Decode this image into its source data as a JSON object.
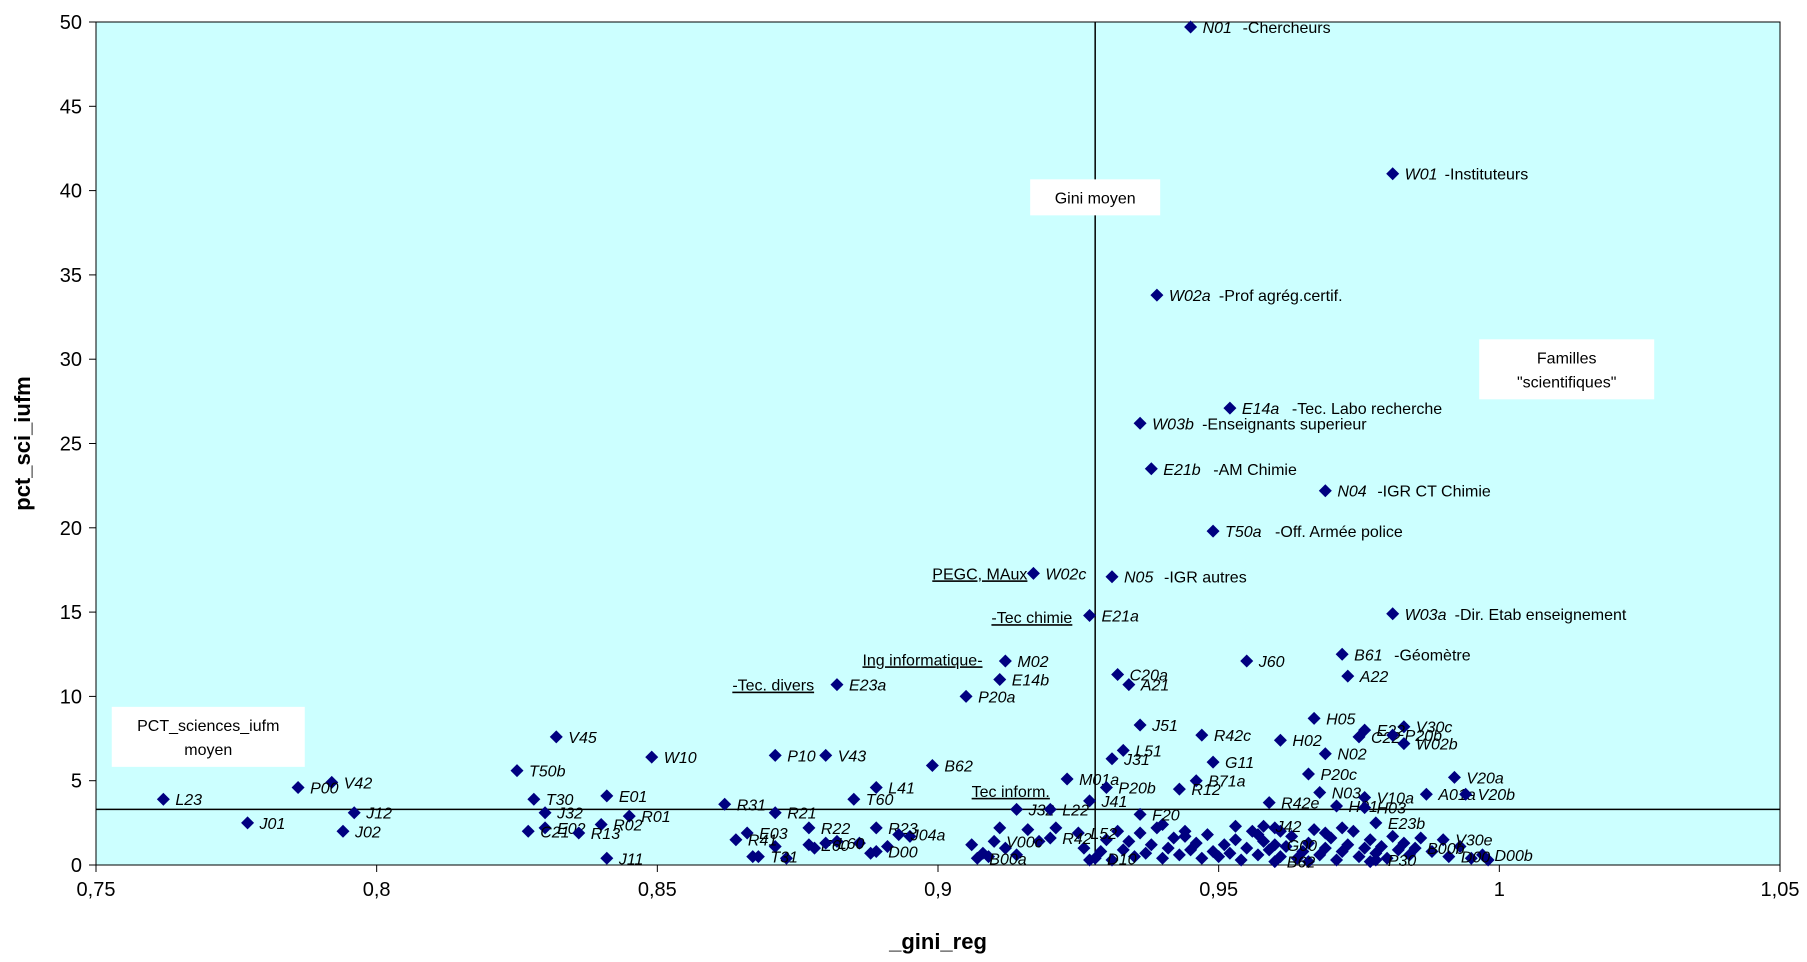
{
  "chart_data": {
    "type": "scatter",
    "xlabel": "_gini_reg",
    "ylabel": "pct_sci_iufm",
    "xlim": [
      0.75,
      1.05
    ],
    "ylim": [
      0,
      50
    ],
    "x_ticks": [
      "0,75",
      "0,8",
      "0,85",
      "0,9",
      "0,95",
      "1",
      "1,05"
    ],
    "y_ticks": [
      "0",
      "5",
      "10",
      "15",
      "20",
      "25",
      "30",
      "35",
      "40",
      "45",
      "50"
    ],
    "background_color": "#ccffff",
    "marker_color": "#000080",
    "grid": false,
    "mean_lines": {
      "gini_moyen": 0.928,
      "pct_moyen": 3.3
    },
    "annotation_boxes": [
      {
        "text": [
          "Gini moyen"
        ],
        "x": 0.928,
        "y": 39.6
      },
      {
        "text": [
          "Familles",
          "\"scientifiques\""
        ],
        "x": 1.012,
        "y": 29.4
      },
      {
        "text": [
          "PCT_sciences_iufm",
          "moyen"
        ],
        "x": 0.77,
        "y": 7.6
      }
    ],
    "group_labels": [
      {
        "text": "PEGC, MAux",
        "x": 0.917,
        "y": 17.3
      },
      {
        "text": "-Tec chimie",
        "x": 0.925,
        "y": 14.7
      },
      {
        "text": "Ing informatique-",
        "x": 0.909,
        "y": 12.2
      },
      {
        "text": "-Tec. divers",
        "x": 0.879,
        "y": 10.7
      },
      {
        "text": "Tec inform.",
        "x": 0.921,
        "y": 4.4
      }
    ],
    "points": [
      {
        "label": "N01",
        "x": 0.945,
        "y": 49.7,
        "desc": "-Chercheurs"
      },
      {
        "label": "W01",
        "x": 0.981,
        "y": 41.0,
        "desc": "-Instituteurs"
      },
      {
        "label": "W02a",
        "x": 0.939,
        "y": 33.8,
        "desc": "-Prof agrég.certif."
      },
      {
        "label": "E14a",
        "x": 0.952,
        "y": 27.1,
        "desc": "-Tec. Labo recherche"
      },
      {
        "label": "W03b",
        "x": 0.936,
        "y": 26.2,
        "desc": "-Enseignants superieur"
      },
      {
        "label": "E21b",
        "x": 0.938,
        "y": 23.5,
        "desc": "-AM Chimie"
      },
      {
        "label": "N04",
        "x": 0.969,
        "y": 22.2,
        "desc": "-IGR CT Chimie"
      },
      {
        "label": "T50a",
        "x": 0.949,
        "y": 19.8,
        "desc": "-Off. Armée police"
      },
      {
        "label": "W02c",
        "x": 0.917,
        "y": 17.3
      },
      {
        "label": "N05",
        "x": 0.931,
        "y": 17.1,
        "desc": "-IGR autres"
      },
      {
        "label": "E21a",
        "x": 0.927,
        "y": 14.8
      },
      {
        "label": "W03a",
        "x": 0.981,
        "y": 14.9,
        "desc": "-Dir. Etab enseignement"
      },
      {
        "label": "B61",
        "x": 0.972,
        "y": 12.5,
        "desc": "-Géomètre"
      },
      {
        "label": "J60",
        "x": 0.955,
        "y": 12.1
      },
      {
        "label": "M02",
        "x": 0.912,
        "y": 12.1
      },
      {
        "label": "C20a",
        "x": 0.932,
        "y": 11.3
      },
      {
        "label": "A22",
        "x": 0.973,
        "y": 11.2
      },
      {
        "label": "E14b",
        "x": 0.911,
        "y": 11.0
      },
      {
        "label": "E23a",
        "x": 0.882,
        "y": 10.7
      },
      {
        "label": "A21",
        "x": 0.934,
        "y": 10.7
      },
      {
        "label": "P20a",
        "x": 0.905,
        "y": 10.0
      },
      {
        "label": "H05",
        "x": 0.967,
        "y": 8.7
      },
      {
        "label": "J51",
        "x": 0.936,
        "y": 8.3
      },
      {
        "label": "V30c",
        "x": 0.983,
        "y": 8.2
      },
      {
        "label": "E22",
        "x": 0.976,
        "y": 8.0
      },
      {
        "label": "R42c",
        "x": 0.947,
        "y": 7.7
      },
      {
        "label": "C22",
        "x": 0.975,
        "y": 7.6
      },
      {
        "label": "P20b",
        "x": 0.981,
        "y": 7.7
      },
      {
        "label": "H02",
        "x": 0.961,
        "y": 7.4
      },
      {
        "label": "V45",
        "x": 0.832,
        "y": 7.6
      },
      {
        "label": "W02b",
        "x": 0.983,
        "y": 7.2
      },
      {
        "label": "N02",
        "x": 0.969,
        "y": 6.6
      },
      {
        "label": "L51",
        "x": 0.933,
        "y": 6.8
      },
      {
        "label": "W10",
        "x": 0.849,
        "y": 6.4
      },
      {
        "label": "P10",
        "x": 0.871,
        "y": 6.5
      },
      {
        "label": "V43",
        "x": 0.88,
        "y": 6.5
      },
      {
        "label": "J31",
        "x": 0.931,
        "y": 6.3
      },
      {
        "label": "G11",
        "x": 0.949,
        "y": 6.1
      },
      {
        "label": "B62",
        "x": 0.899,
        "y": 5.9
      },
      {
        "label": "T50b",
        "x": 0.825,
        "y": 5.6
      },
      {
        "label": "P20c",
        "x": 0.966,
        "y": 5.4
      },
      {
        "label": "V20a",
        "x": 0.992,
        "y": 5.2
      },
      {
        "label": "M01a",
        "x": 0.923,
        "y": 5.1
      },
      {
        "label": "B71a",
        "x": 0.946,
        "y": 5.0
      },
      {
        "label": "V42",
        "x": 0.792,
        "y": 4.9
      },
      {
        "label": "P00",
        "x": 0.786,
        "y": 4.6
      },
      {
        "label": "L41",
        "x": 0.889,
        "y": 4.6
      },
      {
        "label": "P20b",
        "x": 0.93,
        "y": 4.6
      },
      {
        "label": "R12",
        "x": 0.943,
        "y": 4.5
      },
      {
        "label": "N03",
        "x": 0.968,
        "y": 4.3
      },
      {
        "label": "A01a",
        "x": 0.987,
        "y": 4.2
      },
      {
        "label": "V20b",
        "x": 0.994,
        "y": 4.2
      },
      {
        "label": "E01",
        "x": 0.841,
        "y": 4.1
      },
      {
        "label": "V10a",
        "x": 0.976,
        "y": 4.0
      },
      {
        "label": "T30",
        "x": 0.828,
        "y": 3.9
      },
      {
        "label": "T60",
        "x": 0.885,
        "y": 3.9
      },
      {
        "label": "L23",
        "x": 0.762,
        "y": 3.9
      },
      {
        "label": "J41",
        "x": 0.927,
        "y": 3.8
      },
      {
        "label": "R42e",
        "x": 0.959,
        "y": 3.7
      },
      {
        "label": "R31",
        "x": 0.862,
        "y": 3.6
      },
      {
        "label": "H01",
        "x": 0.971,
        "y": 3.5
      },
      {
        "label": "H03",
        "x": 0.976,
        "y": 3.4
      },
      {
        "label": "J32",
        "x": 0.914,
        "y": 3.3
      },
      {
        "label": "L22",
        "x": 0.92,
        "y": 3.3
      },
      {
        "label": "J12",
        "x": 0.796,
        "y": 3.1
      },
      {
        "label": "J32",
        "x": 0.83,
        "y": 3.1
      },
      {
        "label": "R21",
        "x": 0.871,
        "y": 3.1
      },
      {
        "label": "F20",
        "x": 0.936,
        "y": 3.0
      },
      {
        "label": "R01",
        "x": 0.845,
        "y": 2.9
      },
      {
        "label": "E23b",
        "x": 0.978,
        "y": 2.5
      },
      {
        "label": "J01",
        "x": 0.777,
        "y": 2.5
      },
      {
        "label": "R02",
        "x": 0.84,
        "y": 2.4
      },
      {
        "label": "R22",
        "x": 0.877,
        "y": 2.2
      },
      {
        "label": "R23",
        "x": 0.889,
        "y": 2.2
      },
      {
        "label": "E02",
        "x": 0.83,
        "y": 2.2
      },
      {
        "label": "J42",
        "x": 0.958,
        "y": 2.3
      },
      {
        "label": "C21",
        "x": 0.827,
        "y": 2.0
      },
      {
        "label": "J02",
        "x": 0.794,
        "y": 2.0
      },
      {
        "label": "R13",
        "x": 0.836,
        "y": 1.9
      },
      {
        "label": "E03",
        "x": 0.866,
        "y": 1.9
      },
      {
        "label": "J04a",
        "x": 0.893,
        "y": 1.8
      },
      {
        "label": "L52",
        "x": 0.925,
        "y": 1.9
      },
      {
        "label": "V30e",
        "x": 0.99,
        "y": 1.5
      },
      {
        "label": "D00b",
        "x": 0.997,
        "y": 0.6
      },
      {
        "label": "D00",
        "x": 0.991,
        "y": 0.5
      },
      {
        "label": "E60",
        "x": 0.877,
        "y": 1.2
      },
      {
        "label": "D00",
        "x": 0.889,
        "y": 0.8
      },
      {
        "label": "T31",
        "x": 0.868,
        "y": 0.5
      },
      {
        "label": "J11",
        "x": 0.841,
        "y": 0.4
      },
      {
        "label": "D10",
        "x": 0.928,
        "y": 0.4
      },
      {
        "label": "B62",
        "x": 0.96,
        "y": 0.2
      },
      {
        "label": "P30",
        "x": 0.978,
        "y": 0.3
      },
      {
        "label": "B00a",
        "x": 0.907,
        "y": 0.4
      },
      {
        "label": "R41",
        "x": 0.864,
        "y": 1.5
      },
      {
        "label": "R42",
        "x": 0.92,
        "y": 1.6
      },
      {
        "label": "V00c",
        "x": 0.91,
        "y": 1.4
      },
      {
        "label": "G00",
        "x": 0.96,
        "y": 1.2
      },
      {
        "label": "L60",
        "x": 0.88,
        "y": 1.3
      },
      {
        "label": "B00b",
        "x": 0.985,
        "y": 1.0
      }
    ],
    "filler_points": [
      [
        0.867,
        0.5
      ],
      [
        0.871,
        1.1
      ],
      [
        0.873,
        0.4
      ],
      [
        0.878,
        1.0
      ],
      [
        0.882,
        1.4
      ],
      [
        0.886,
        1.3
      ],
      [
        0.888,
        0.7
      ],
      [
        0.891,
        1.1
      ],
      [
        0.895,
        1.7
      ],
      [
        0.906,
        1.2
      ],
      [
        0.908,
        0.7
      ],
      [
        0.909,
        0.5
      ],
      [
        0.911,
        2.2
      ],
      [
        0.912,
        1.0
      ],
      [
        0.914,
        0.6
      ],
      [
        0.916,
        2.1
      ],
      [
        0.918,
        1.4
      ],
      [
        0.921,
        2.2
      ],
      [
        0.926,
        1.0
      ],
      [
        0.927,
        0.3
      ],
      [
        0.929,
        0.8
      ],
      [
        0.93,
        1.5
      ],
      [
        0.931,
        0.3
      ],
      [
        0.932,
        2.0
      ],
      [
        0.933,
        0.9
      ],
      [
        0.934,
        1.4
      ],
      [
        0.935,
        0.5
      ],
      [
        0.936,
        1.9
      ],
      [
        0.937,
        0.7
      ],
      [
        0.938,
        1.2
      ],
      [
        0.939,
        2.2
      ],
      [
        0.94,
        0.4
      ],
      [
        0.941,
        1.0
      ],
      [
        0.942,
        1.6
      ],
      [
        0.943,
        0.6
      ],
      [
        0.944,
        2.0
      ],
      [
        0.945,
        0.9
      ],
      [
        0.946,
        1.3
      ],
      [
        0.947,
        0.4
      ],
      [
        0.948,
        1.8
      ],
      [
        0.949,
        0.8
      ],
      [
        0.95,
        0.5
      ],
      [
        0.951,
        1.2
      ],
      [
        0.952,
        0.7
      ],
      [
        0.953,
        1.5
      ],
      [
        0.954,
        0.3
      ],
      [
        0.955,
        1.0
      ],
      [
        0.956,
        2.0
      ],
      [
        0.957,
        0.6
      ],
      [
        0.958,
        1.4
      ],
      [
        0.959,
        0.9
      ],
      [
        0.96,
        2.2
      ],
      [
        0.961,
        0.5
      ],
      [
        0.962,
        1.1
      ],
      [
        0.963,
        1.7
      ],
      [
        0.964,
        0.4
      ],
      [
        0.965,
        0.8
      ],
      [
        0.966,
        1.3
      ],
      [
        0.967,
        2.1
      ],
      [
        0.968,
        0.6
      ],
      [
        0.969,
        1.0
      ],
      [
        0.97,
        1.6
      ],
      [
        0.971,
        0.3
      ],
      [
        0.972,
        0.8
      ],
      [
        0.973,
        1.2
      ],
      [
        0.974,
        2.0
      ],
      [
        0.975,
        0.5
      ],
      [
        0.976,
        1.0
      ],
      [
        0.977,
        1.5
      ],
      [
        0.978,
        0.7
      ],
      [
        0.979,
        1.1
      ],
      [
        0.98,
        0.4
      ],
      [
        0.981,
        1.7
      ],
      [
        0.982,
        0.9
      ],
      [
        0.983,
        1.3
      ],
      [
        0.984,
        0.6
      ],
      [
        0.986,
        1.6
      ],
      [
        0.988,
        0.8
      ],
      [
        0.993,
        1.1
      ],
      [
        0.995,
        0.4
      ],
      [
        0.998,
        0.3
      ],
      [
        0.944,
        1.7
      ],
      [
        0.953,
        2.3
      ],
      [
        0.961,
        2.0
      ],
      [
        0.966,
        0.2
      ],
      [
        0.972,
        2.2
      ],
      [
        0.977,
        0.2
      ],
      [
        0.94,
        2.4
      ],
      [
        0.957,
        1.8
      ],
      [
        0.969,
        1.9
      ]
    ]
  }
}
